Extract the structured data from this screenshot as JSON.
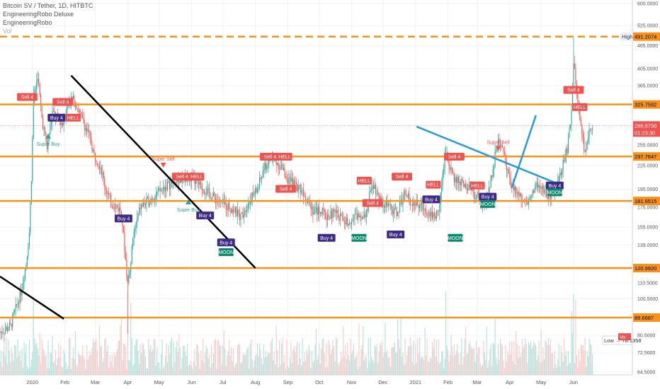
{
  "legend": {
    "title": "Bitcoin SV / Tether, 1D, HITBTC",
    "indicator1": "EngineeringRobo Deluxe",
    "indicator2": "EngineeringRobo",
    "indicator3": "Vol"
  },
  "chart_data": {
    "type": "candlestick",
    "y_scale": "log",
    "ylim": [
      64,
      620
    ],
    "x_labels": [
      "2020",
      "Feb",
      "Mar",
      "Apr",
      "May",
      "Jun",
      "Jul",
      "Aug",
      "Sep",
      "Oct",
      "Nov",
      "Dec",
      "2021",
      "Feb",
      "Mar",
      "Apr",
      "May",
      "Jun"
    ],
    "y_ticks": [
      "600.0000",
      "525.0000",
      "465.0000",
      "405.0000",
      "365.0000",
      "325.0000",
      "285.0000",
      "255.0000",
      "225.0000",
      "195.0000",
      "175.0000",
      "155.0000",
      "139.0000",
      "120.9920",
      "110.5000",
      "100.5000",
      "89.6687",
      "80.5000",
      "72.5000",
      "64.5000"
    ],
    "levels": [
      {
        "value": 491.2074,
        "label": "491.2074",
        "tag": "High",
        "style": "dashed",
        "color": "#f7931a"
      },
      {
        "value": 325.7592,
        "label": "325.7592",
        "style": "solid",
        "color": "#f7931a"
      },
      {
        "value": 237.7647,
        "label": "237.7647",
        "style": "solid",
        "color": "#f7931a"
      },
      {
        "value": 181.6515,
        "label": "181.6515",
        "style": "solid",
        "color": "#f7931a"
      },
      {
        "value": 120.992,
        "label": "120.9920",
        "style": "solid",
        "color": "#f7931a"
      },
      {
        "value": 89.6687,
        "label": "89.6687",
        "style": "solid",
        "color": "#f7931a"
      }
    ],
    "last_price": {
      "value": 286.875,
      "label": "286.8750",
      "countdown": "01:23:30",
      "color": "#ef5350"
    },
    "low": {
      "value": 78.1358,
      "label": "Low",
      "price": "78.1358"
    },
    "volume_tag": "Vo",
    "trendlines": [
      {
        "color": "#000000",
        "from": [
          "2019-12-01",
          115
        ],
        "to": [
          "2020-01-31",
          89
        ]
      },
      {
        "color": "#000000",
        "from": [
          "2020-02-07",
          388
        ],
        "to": [
          "2020-08-01",
          121
        ]
      },
      {
        "color": "#2b9bd6",
        "from": [
          "2021-01-02",
          285
        ],
        "to": [
          "2021-05-14",
          203
        ]
      },
      {
        "color": "#2b9bd6",
        "from": [
          "2021-04-03",
          197
        ],
        "to": [
          "2021-04-26",
          305
        ]
      }
    ],
    "labels": [
      {
        "text": "Sell 4",
        "type": "sell"
      },
      {
        "text": "Sell 4",
        "type": "sell"
      },
      {
        "text": "Buy 4",
        "type": "buy"
      },
      {
        "text": "HELL",
        "type": "hell"
      },
      {
        "text": "Super Buy",
        "type": "superbuy"
      },
      {
        "text": "Super Sell",
        "type": "supersell"
      },
      {
        "text": "Sell 4",
        "type": "sell"
      },
      {
        "text": "HELL",
        "type": "hell"
      },
      {
        "text": "Super Buy",
        "type": "superbuy"
      },
      {
        "text": "Buy 4",
        "type": "buy"
      },
      {
        "text": "Buy 4",
        "type": "buy"
      },
      {
        "text": "MOON",
        "type": "moon"
      },
      {
        "text": "Sell 4",
        "type": "sell"
      },
      {
        "text": "HELL",
        "type": "hell"
      },
      {
        "text": "Sell 4",
        "type": "sell"
      },
      {
        "text": "Buy 4",
        "type": "buy"
      },
      {
        "text": "MOON",
        "type": "moon"
      },
      {
        "text": "Buy 4",
        "type": "buy"
      },
      {
        "text": "Sell 4",
        "type": "sell"
      },
      {
        "text": "HELL",
        "type": "hell"
      },
      {
        "text": "Buy 4",
        "type": "buy"
      },
      {
        "text": "MOON",
        "type": "moon"
      },
      {
        "text": "Sell 4",
        "type": "sell"
      },
      {
        "text": "HELL",
        "type": "hell"
      },
      {
        "text": "Super Sell",
        "type": "supersell"
      },
      {
        "text": "Buy 4",
        "type": "buy"
      },
      {
        "text": "MOON",
        "type": "moon"
      },
      {
        "text": "Sell 4",
        "type": "sell"
      },
      {
        "text": "HELL",
        "type": "hell"
      },
      {
        "text": "Buy 4",
        "type": "buy"
      },
      {
        "text": "MOON",
        "type": "moon"
      },
      {
        "text": "Sell 4",
        "type": "sell"
      },
      {
        "text": "HELL",
        "type": "hell"
      },
      {
        "text": "Buy 4",
        "type": "buy"
      }
    ]
  },
  "colors": {
    "bull": "#26a69a",
    "bear": "#ef5350",
    "level": "#f7931a",
    "sell": "#ef5350",
    "buy": "#3f2a86",
    "moon": "#0b8a6f",
    "hell": "#ef5350"
  }
}
